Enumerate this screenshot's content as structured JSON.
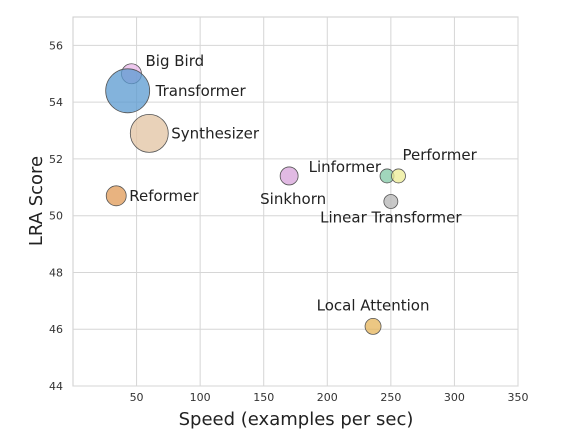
{
  "chart_data": {
    "type": "scatter",
    "title": "",
    "xlabel": "Speed (examples per sec)",
    "ylabel": "LRA Score",
    "xlim": [
      0,
      350
    ],
    "ylim": [
      44,
      57
    ],
    "xticks": [
      50,
      100,
      150,
      200,
      250,
      300,
      350
    ],
    "yticks": [
      44,
      46,
      48,
      50,
      52,
      54,
      56
    ],
    "grid": true,
    "points": [
      {
        "label": "Big Bird",
        "x": 46,
        "y": 55.0,
        "color": "#e8b6e8",
        "label_dx": 14,
        "label_dy": -8,
        "r": 10,
        "anchor": "start"
      },
      {
        "label": "Transformer",
        "x": 43,
        "y": 54.4,
        "color": "#5a9ad0",
        "label_dx": 28,
        "label_dy": 5,
        "r": 22,
        "anchor": "start"
      },
      {
        "label": "Synthesizer",
        "x": 60,
        "y": 52.9,
        "color": "#e2c3a1",
        "label_dx": 22,
        "label_dy": 5,
        "r": 19,
        "anchor": "start"
      },
      {
        "label": "Reformer",
        "x": 34,
        "y": 50.7,
        "color": "#e09a55",
        "label_dx": 13,
        "label_dy": 5,
        "r": 10,
        "anchor": "start"
      },
      {
        "label": "Sinkhorn",
        "x": 170,
        "y": 51.4,
        "color": "#d7a3d9",
        "label_dx": 4,
        "label_dy": 28,
        "r": 9,
        "anchor": "middle"
      },
      {
        "label": "Linformer",
        "x": 247,
        "y": 51.4,
        "color": "#82c8a5",
        "label_dx": -6,
        "label_dy": -4,
        "r": 7,
        "anchor": "end"
      },
      {
        "label": "Performer",
        "x": 256,
        "y": 51.4,
        "color": "#ecec94",
        "label_dx": 4,
        "label_dy": -16,
        "r": 7,
        "anchor": "start"
      },
      {
        "label": "Linear Transformer",
        "x": 250,
        "y": 50.5,
        "color": "#b6b6b6",
        "label_dx": 0,
        "label_dy": 21,
        "r": 7,
        "anchor": "middle"
      },
      {
        "label": "Local Attention",
        "x": 236,
        "y": 46.1,
        "color": "#e6b459",
        "label_dx": 0,
        "label_dy": -16,
        "r": 8,
        "anchor": "middle"
      }
    ]
  }
}
